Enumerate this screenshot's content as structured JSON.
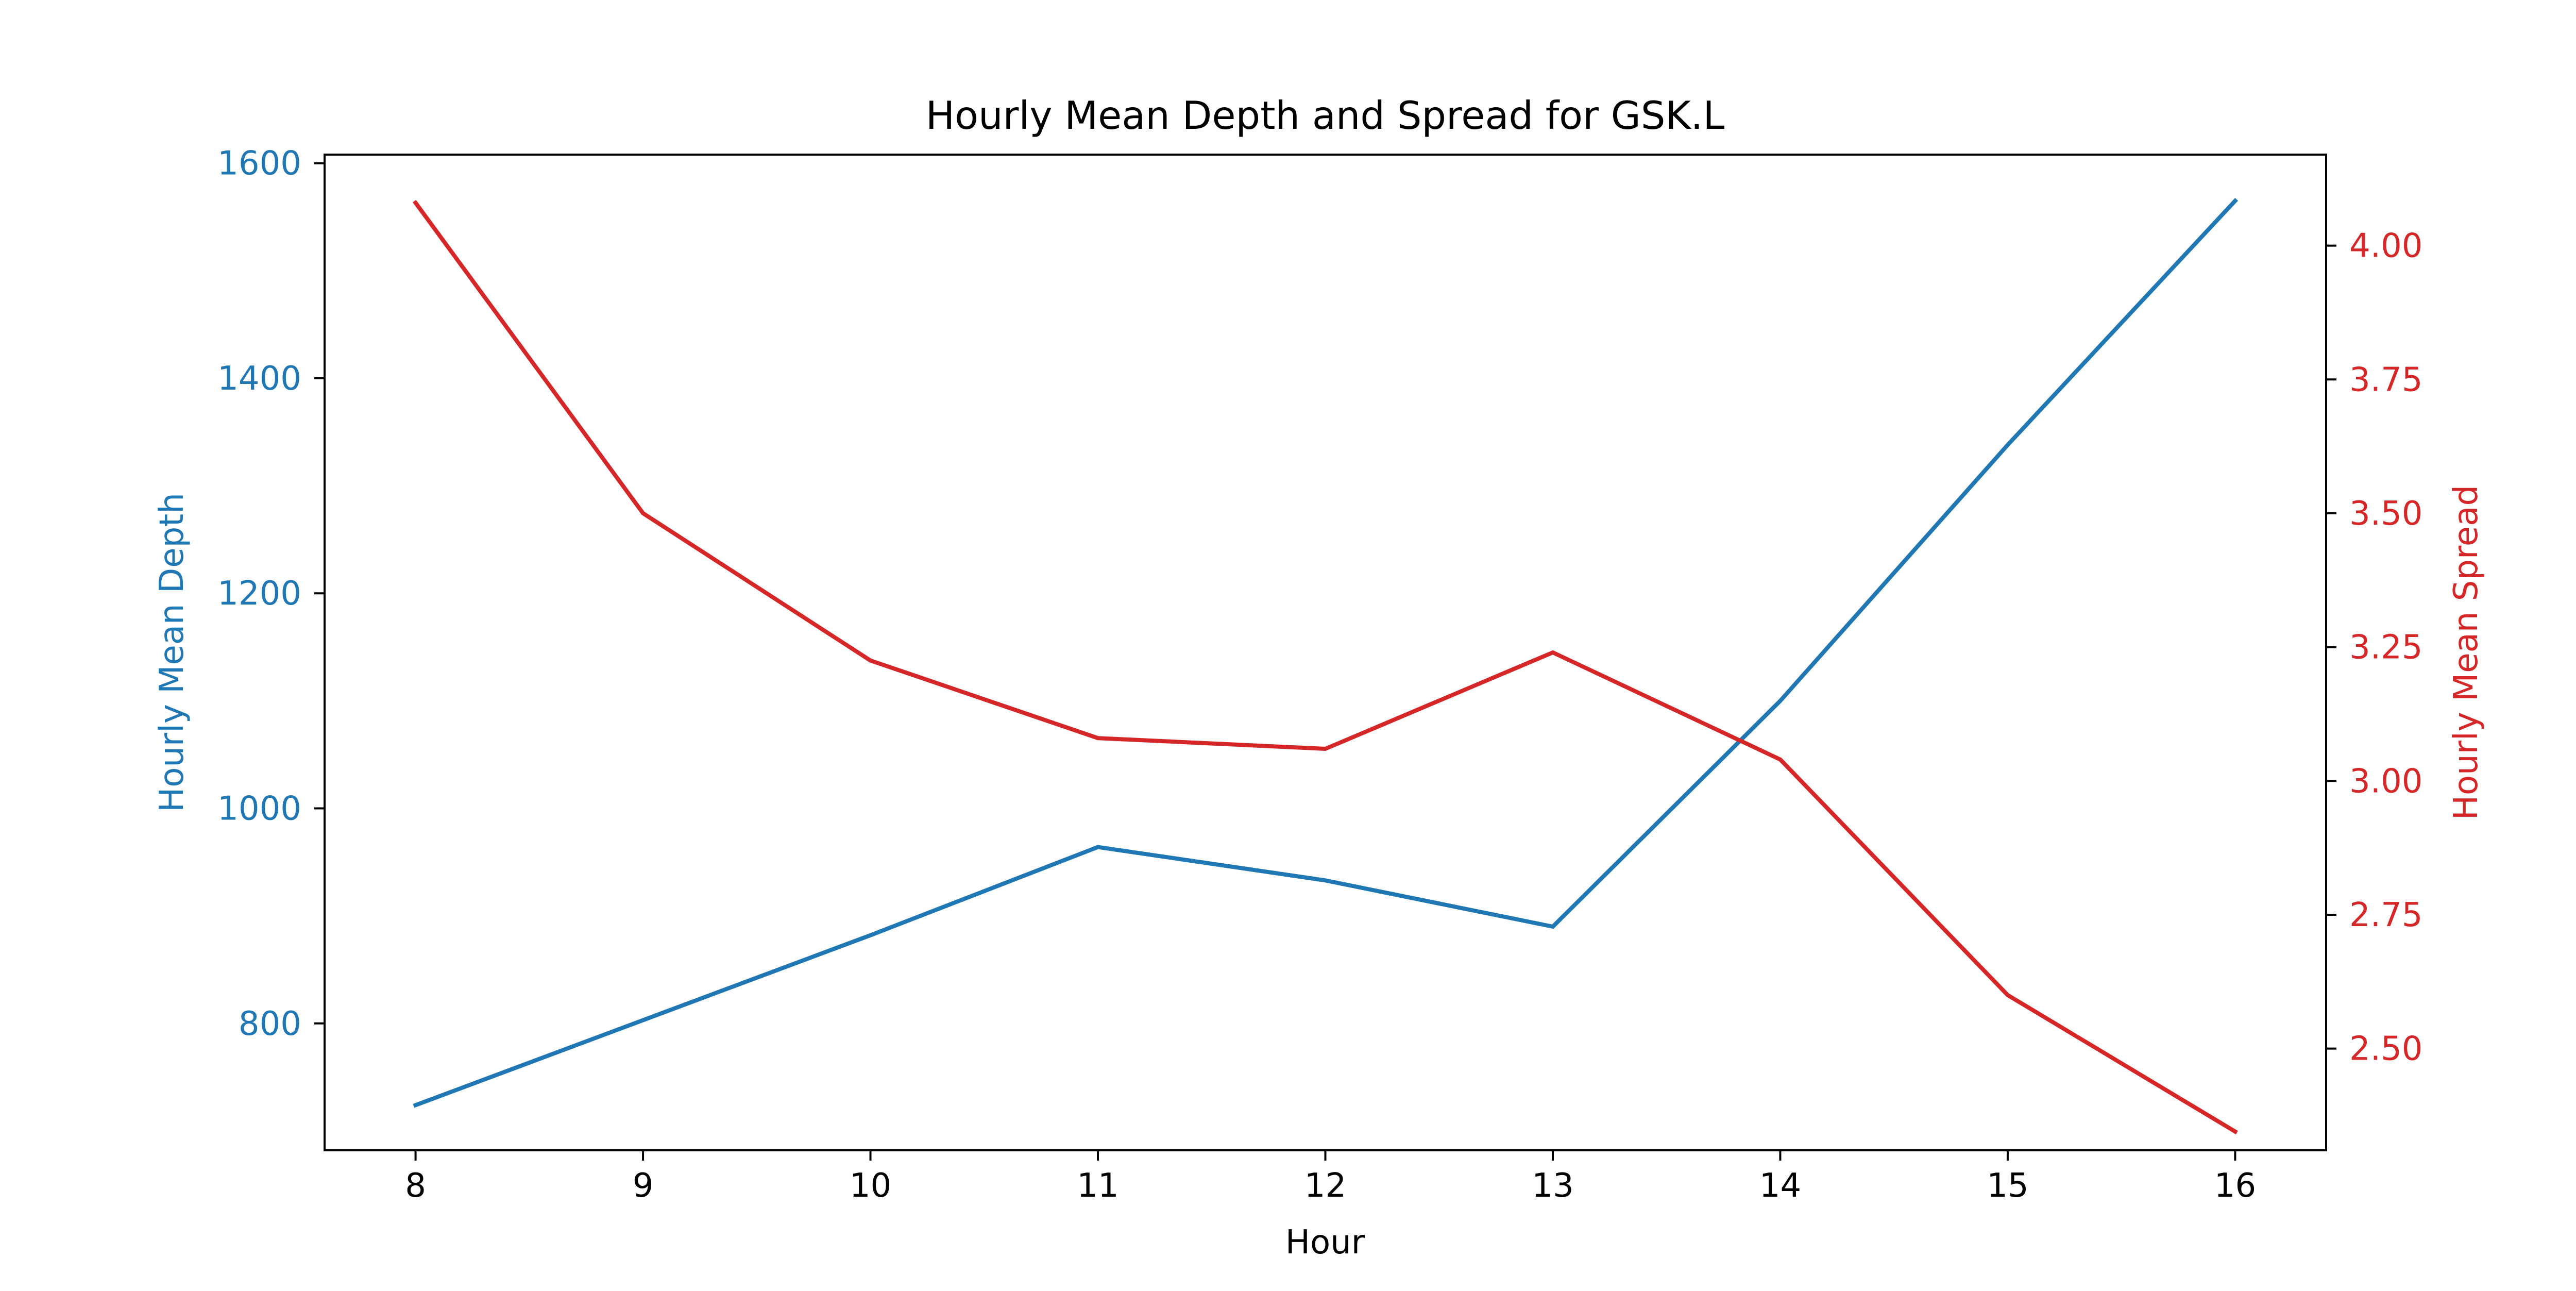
{
  "chart_data": {
    "type": "line",
    "title": "Hourly Mean Depth and Spread for GSK.L",
    "xlabel": "Hour",
    "x": [
      8,
      9,
      10,
      11,
      12,
      13,
      14,
      15,
      16
    ],
    "xticks": [
      "8",
      "9",
      "10",
      "11",
      "12",
      "13",
      "14",
      "15",
      "16"
    ],
    "xlim": [
      7.6,
      16.4
    ],
    "grid": false,
    "series": [
      {
        "name": "Hourly Mean Depth",
        "axis": "left",
        "color": "#1f77b4",
        "values": [
          724,
          803,
          882,
          964,
          933,
          890,
          1100,
          1338,
          1565
        ]
      },
      {
        "name": "Hourly Mean Spread",
        "axis": "right",
        "color": "#d62728",
        "values": [
          4.08,
          3.5,
          3.225,
          3.08,
          3.06,
          3.24,
          3.04,
          2.6,
          2.345
        ]
      }
    ],
    "y_left": {
      "label": "Hourly Mean Depth",
      "color": "#1f77b4",
      "ylim": [
        682,
        1608
      ],
      "ticks": [
        800,
        1000,
        1200,
        1400,
        1600
      ],
      "tick_labels": [
        "800",
        "1000",
        "1200",
        "1400",
        "1600"
      ]
    },
    "y_right": {
      "label": "Hourly Mean Spread",
      "color": "#d62728",
      "ylim": [
        2.31,
        4.17
      ],
      "ticks": [
        2.5,
        2.75,
        3.0,
        3.25,
        3.5,
        3.75,
        4.0
      ],
      "tick_labels": [
        "2.50",
        "2.75",
        "3.00",
        "3.25",
        "3.50",
        "3.75",
        "4.00"
      ]
    }
  }
}
